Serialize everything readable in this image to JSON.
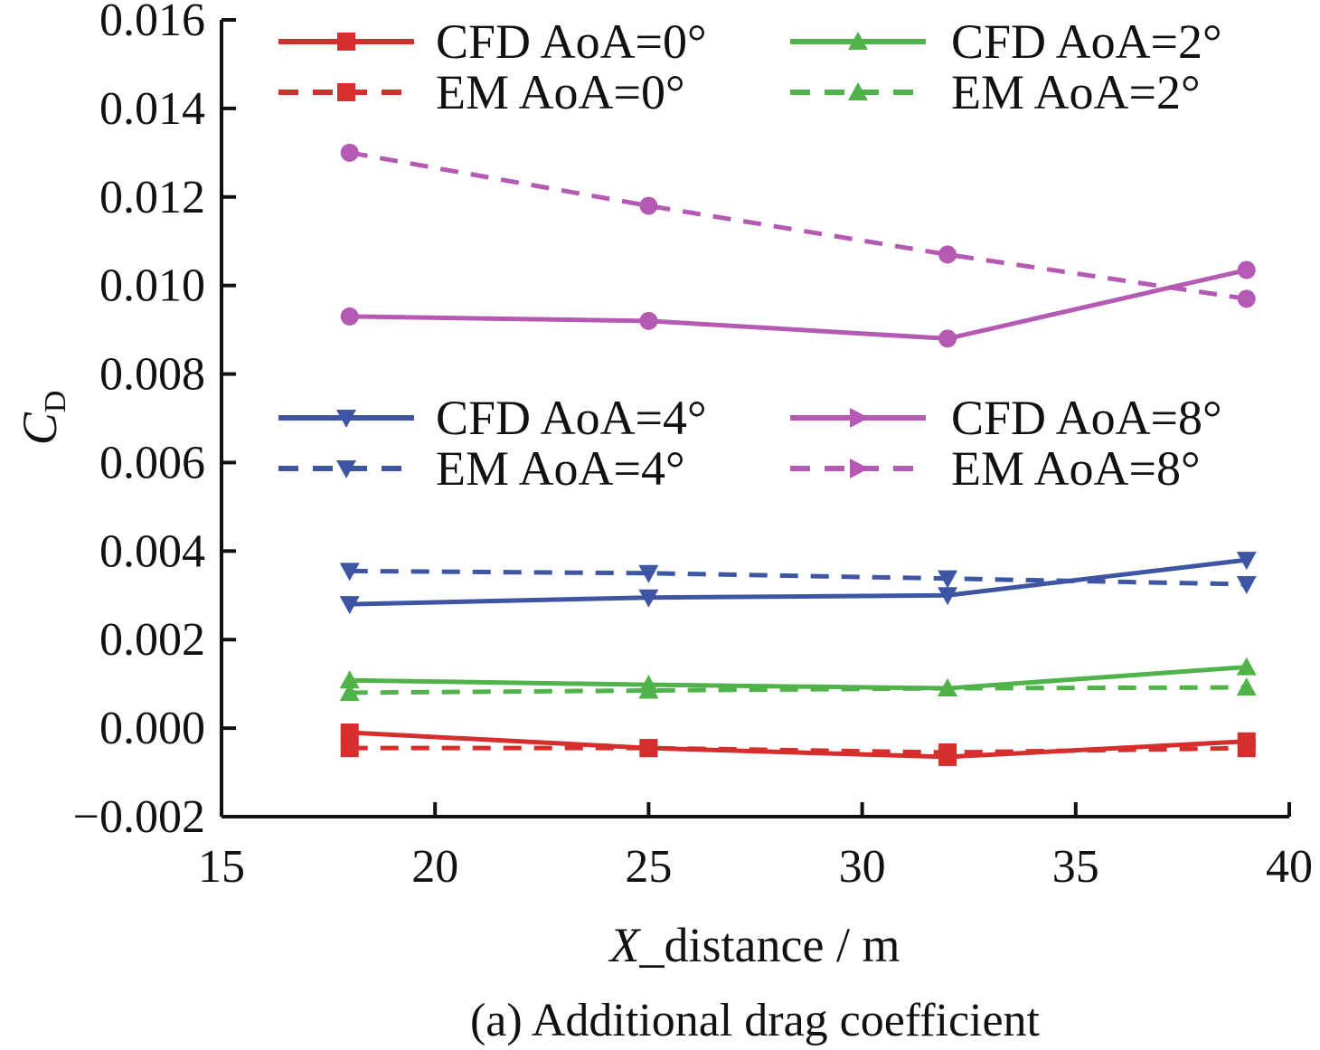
{
  "chart_data": {
    "type": "line",
    "title": "",
    "caption": "(a) Additional drag coefficient",
    "xlabel_italic": "X",
    "xlabel_rest": "_distance / m",
    "ylabel_main": "C",
    "ylabel_sub": "D",
    "xlim": [
      15,
      40
    ],
    "ylim": [
      -0.002,
      0.016
    ],
    "xticks": [
      15,
      20,
      25,
      30,
      35,
      40
    ],
    "yticks": [
      -0.002,
      0.0,
      0.002,
      0.004,
      0.006,
      0.008,
      0.01,
      0.012,
      0.014,
      0.016
    ],
    "xtick_labels": [
      "15",
      "20",
      "25",
      "30",
      "35",
      "40"
    ],
    "ytick_labels": [
      "−0.002",
      "0.000",
      "0.002",
      "0.004",
      "0.006",
      "0.008",
      "0.010",
      "0.012",
      "0.014",
      "0.016"
    ],
    "grid": false,
    "x": [
      18,
      25,
      32,
      39
    ],
    "series": [
      {
        "name": "CFD AoA=0°",
        "color": "#d62d2d",
        "dash": "solid",
        "marker": "square",
        "values": [
          -0.0001,
          -0.00045,
          -0.00065,
          -0.0003
        ]
      },
      {
        "name": "EM AoA=0°",
        "color": "#d62d2d",
        "dash": "dashed",
        "marker": "square",
        "values": [
          -0.00045,
          -0.00045,
          -0.00055,
          -0.00045
        ]
      },
      {
        "name": "CFD AoA=2°",
        "color": "#4fb34a",
        "dash": "solid",
        "marker": "triangle-up",
        "values": [
          0.00108,
          0.00098,
          0.0009,
          0.00138
        ]
      },
      {
        "name": "EM AoA=2°",
        "color": "#4fb34a",
        "dash": "dashed",
        "marker": "triangle-up",
        "values": [
          0.0008,
          0.00085,
          0.0009,
          0.00092
        ]
      },
      {
        "name": "CFD AoA=4°",
        "color": "#3d55a3",
        "dash": "solid",
        "marker": "triangle-down",
        "values": [
          0.0028,
          0.00295,
          0.003,
          0.0038
        ]
      },
      {
        "name": "EM AoA=4°",
        "color": "#3d55a3",
        "dash": "dashed",
        "marker": "triangle-down",
        "values": [
          0.00355,
          0.0035,
          0.00338,
          0.00325
        ]
      },
      {
        "name": "CFD AoA=8°",
        "color": "#b45ab2",
        "dash": "solid",
        "marker": "triangle-right",
        "values": [
          0.0093,
          0.0092,
          0.0088,
          0.01035
        ]
      },
      {
        "name": "EM AoA=8°",
        "color": "#b45ab2",
        "dash": "dashed",
        "marker": "triangle-right",
        "values": [
          0.013,
          0.0118,
          0.0107,
          0.0097
        ]
      }
    ]
  }
}
